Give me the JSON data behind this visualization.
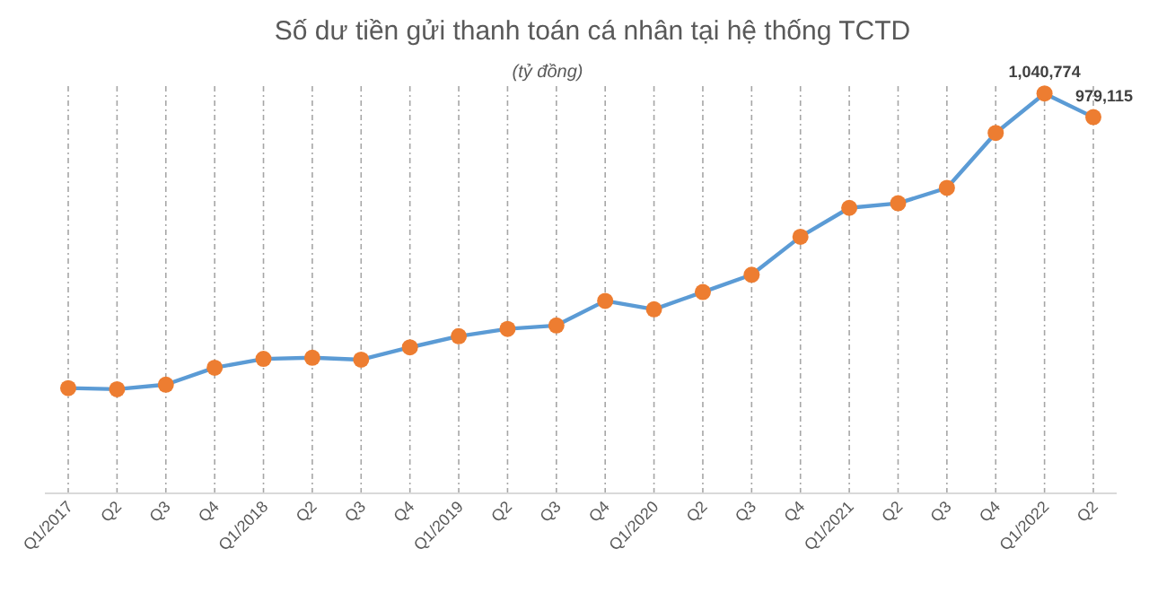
{
  "chart_data": {
    "type": "line",
    "title": "Số dư tiền gửi thanh toán cá nhân tại hệ thống TCTD",
    "subtitle": "(tỷ đồng)",
    "categories": [
      "Q1/2017",
      "Q2",
      "Q3",
      "Q4",
      "Q1/2018",
      "Q2",
      "Q3",
      "Q4",
      "Q1/2019",
      "Q2",
      "Q3",
      "Q4",
      "Q1/2020",
      "Q2",
      "Q3",
      "Q4",
      "Q1/2021",
      "Q2",
      "Q3",
      "Q4",
      "Q1/2022",
      "Q2"
    ],
    "series": [
      {
        "color": "#5b9bd5",
        "colors": [
          "#ed7d31",
          "#ed7d31",
          "#ed7d31",
          "#ed7d31",
          "#ed7d31",
          "#ed7d31",
          "#ed7d31",
          "#ed7d31",
          "#ed7d31",
          "#ed7d31",
          "#ed7d31",
          "#ed7d31",
          "#ed7d31",
          "#ed7d31",
          "#ed7d31",
          "#ed7d31",
          "#ed7d31",
          "#ed7d31",
          "#ed7d31",
          "#ed7d31",
          "#ed7d31",
          "#ed7d31"
        ],
        "values": [
          274000,
          271000,
          283000,
          327000,
          350000,
          353000,
          348000,
          380000,
          409000,
          428000,
          437000,
          501000,
          479000,
          524000,
          569000,
          668000,
          743000,
          755000,
          795000,
          938000,
          1040774,
          979115
        ],
        "value_labels": [
          null,
          null,
          null,
          null,
          null,
          null,
          null,
          null,
          null,
          null,
          null,
          null,
          null,
          null,
          null,
          null,
          null,
          null,
          null,
          null,
          "1,040,774",
          "979,115"
        ]
      }
    ],
    "tick_labels": "x",
    "grid": "x",
    "marker": "circle",
    "line_style": "solid"
  }
}
